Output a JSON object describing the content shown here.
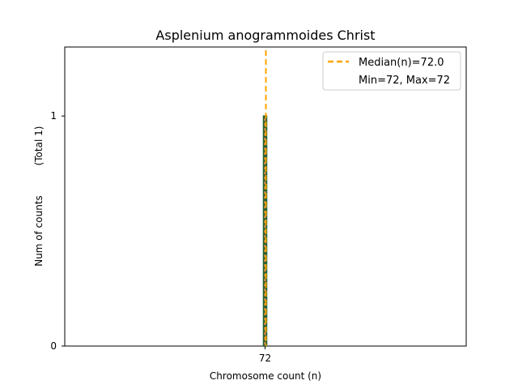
{
  "chart_data": {
    "type": "bar",
    "title": "Asplenium anogrammoides Christ",
    "xlabel": "Chromosome count (n)",
    "ylabel": "Num of counts",
    "ylabel_total": "(Total 1)",
    "categories": [
      72
    ],
    "values": [
      1
    ],
    "x_ticks": [
      "72"
    ],
    "y_ticks": [
      0,
      1
    ],
    "ylim": [
      0,
      1.3
    ],
    "median": 72.0,
    "min": 72,
    "max": 72,
    "legend": {
      "placement": "top-right",
      "entries": [
        "Median(n)=72.0",
        "Min=72, Max=72"
      ]
    },
    "colors": {
      "bar_edge": "#1f5f2f",
      "bar_fill": "#d98a4a",
      "median_line": "#ffa500"
    }
  }
}
